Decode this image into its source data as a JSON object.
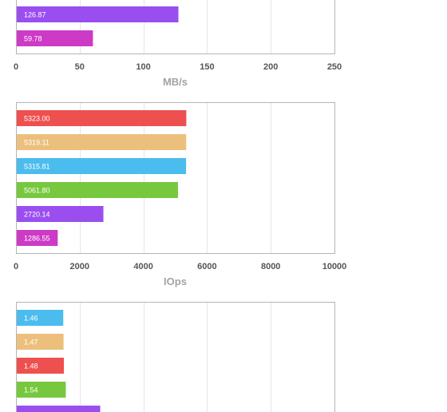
{
  "chart_data": [
    {
      "type": "bar",
      "orientation": "horizontal",
      "xlabel": "MB/s",
      "xlim": [
        0,
        250
      ],
      "xticks": [
        0,
        50,
        100,
        150,
        200,
        250
      ],
      "grid": true,
      "bars": [
        {
          "value": 126.87,
          "label": "126.87",
          "color": "#9a4ef0"
        },
        {
          "value": 59.78,
          "label": "59.78",
          "color": "#cc3ac6"
        }
      ]
    },
    {
      "type": "bar",
      "orientation": "horizontal",
      "xlabel": "IOps",
      "xlim": [
        0,
        10000
      ],
      "xticks": [
        0,
        2000,
        4000,
        6000,
        8000,
        10000
      ],
      "grid": true,
      "bars": [
        {
          "value": 5323.0,
          "label": "5323.00",
          "color": "#ee5050"
        },
        {
          "value": 5319.11,
          "label": "5319.11",
          "color": "#ecc07c"
        },
        {
          "value": 5315.81,
          "label": "5315.81",
          "color": "#4bbcee"
        },
        {
          "value": 5061.8,
          "label": "5061.80",
          "color": "#77c83e"
        },
        {
          "value": 2720.14,
          "label": "2720.14",
          "color": "#9a4ef0"
        },
        {
          "value": 1286.55,
          "label": "1286.55",
          "color": "#cc3ac6"
        }
      ]
    },
    {
      "type": "bar",
      "orientation": "horizontal",
      "xlabel": "",
      "grid": true,
      "bars": [
        {
          "value": 1.46,
          "label": "1.46",
          "color": "#4bbcee"
        },
        {
          "value": 1.47,
          "label": "1.47",
          "color": "#ecc07c"
        },
        {
          "value": 1.48,
          "label": "1.48",
          "color": "#ee5050"
        },
        {
          "value": 1.54,
          "label": "1.54",
          "color": "#77c83e"
        },
        {
          "value": 2.62,
          "label": "",
          "color": "#9a4ef0"
        }
      ]
    }
  ]
}
